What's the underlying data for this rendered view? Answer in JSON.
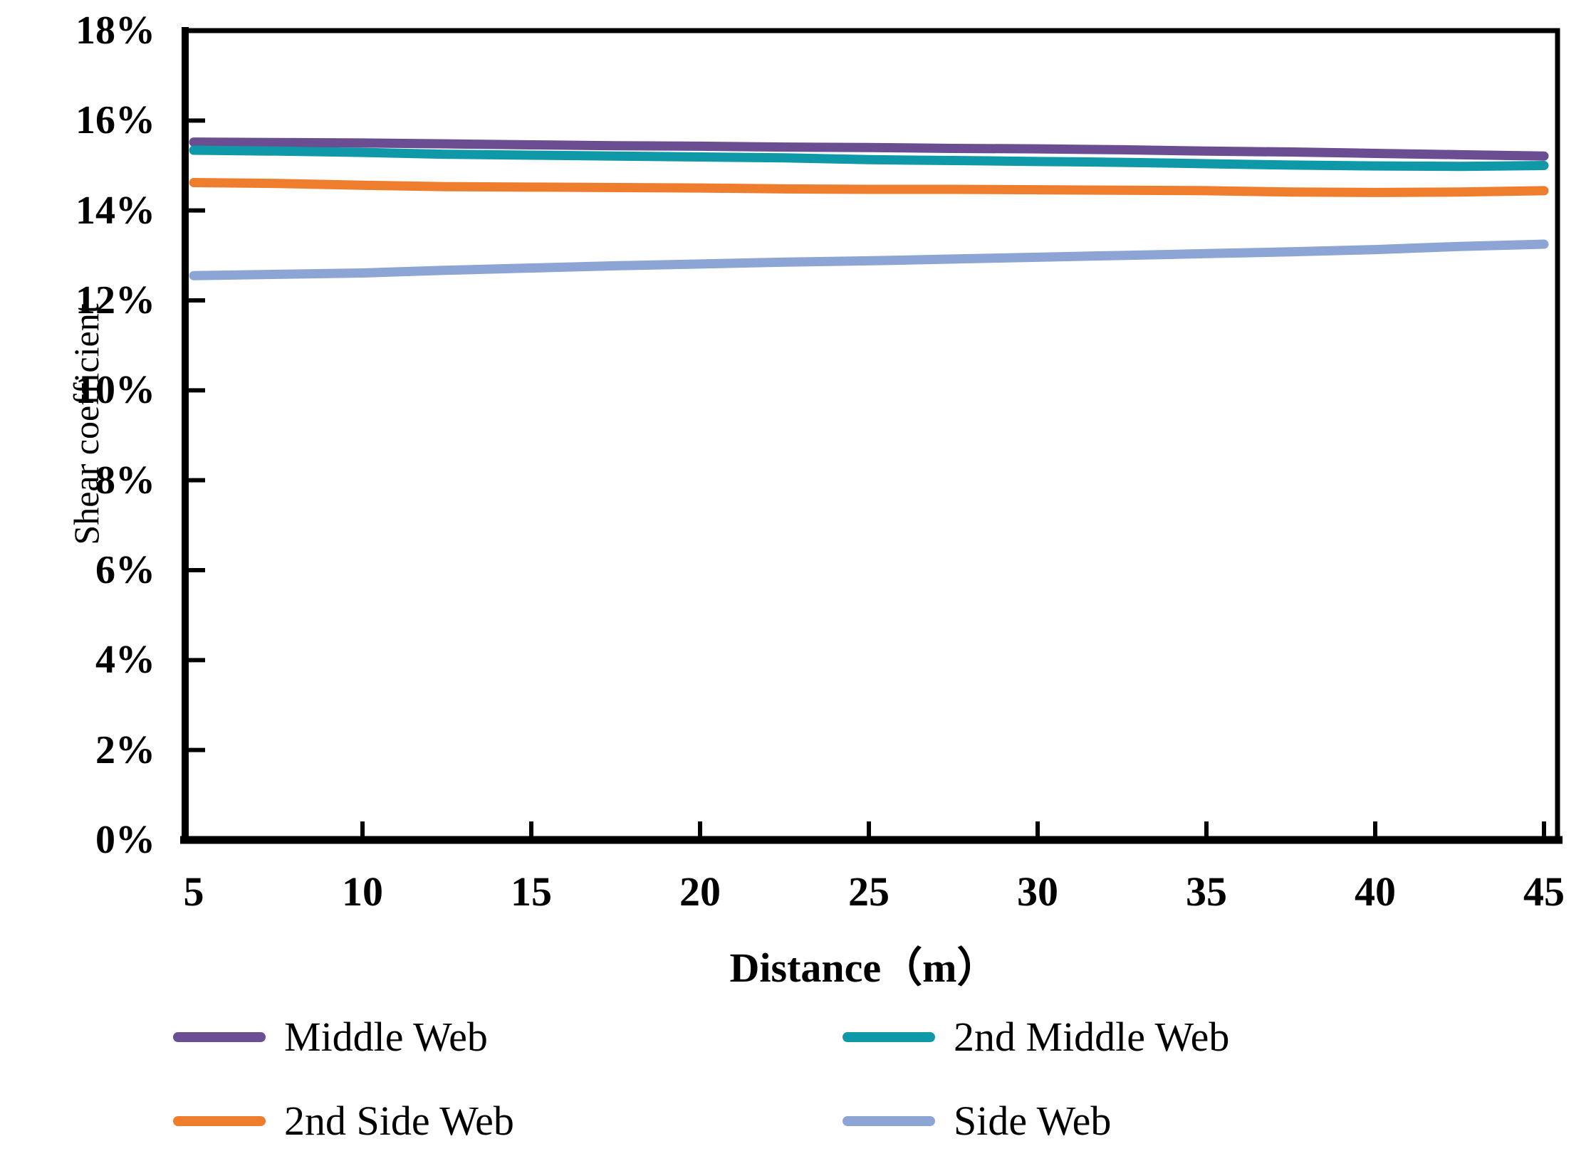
{
  "figure": {
    "background": "#ffffff",
    "axis_color": "#000000"
  },
  "chart_data": {
    "type": "line",
    "title": "",
    "xlabel": "Distance（m）",
    "ylabel": "Shear coefficient",
    "x": [
      5,
      7.5,
      10,
      12.5,
      15,
      17.5,
      20,
      22.5,
      25,
      27.5,
      30,
      32.5,
      35,
      37.5,
      40,
      42.5,
      45
    ],
    "xlim": [
      5,
      45
    ],
    "ylim": [
      0,
      18
    ],
    "grid": false,
    "legend_position": "bottom two-column",
    "x_tick_labels": [
      "5",
      "10",
      "15",
      "20",
      "25",
      "30",
      "35",
      "40",
      "45"
    ],
    "x_tick_values": [
      5,
      10,
      15,
      20,
      25,
      30,
      35,
      40,
      45
    ],
    "x_tick_marks": [
      10,
      15,
      20,
      25,
      30,
      35,
      40,
      45
    ],
    "y_tick_labels": [
      "0%",
      "2%",
      "4%",
      "6%",
      "8%",
      "10%",
      "12%",
      "14%",
      "16%",
      "18%"
    ],
    "y_tick_values": [
      0,
      2,
      4,
      6,
      8,
      10,
      12,
      14,
      16,
      18
    ],
    "y_tick_marks": [
      2,
      4,
      6,
      8,
      10,
      12,
      14,
      16
    ],
    "series": [
      {
        "name": "Middle Web",
        "color": "#6B4D92",
        "values": [
          15.52,
          15.51,
          15.5,
          15.48,
          15.46,
          15.44,
          15.43,
          15.41,
          15.4,
          15.38,
          15.37,
          15.35,
          15.32,
          15.3,
          15.27,
          15.24,
          15.21
        ]
      },
      {
        "name": "2nd Middle Web",
        "color": "#0F98A8",
        "values": [
          15.34,
          15.32,
          15.29,
          15.25,
          15.23,
          15.21,
          15.19,
          15.17,
          15.13,
          15.11,
          15.09,
          15.07,
          15.04,
          15.01,
          14.99,
          14.98,
          15.0
        ]
      },
      {
        "name": "2nd Side Web",
        "color": "#EF7D2E",
        "values": [
          14.62,
          14.6,
          14.56,
          14.53,
          14.52,
          14.51,
          14.5,
          14.48,
          14.47,
          14.47,
          14.46,
          14.45,
          14.44,
          14.41,
          14.4,
          14.41,
          14.44
        ]
      },
      {
        "name": "Side Web",
        "color": "#8CA5D5",
        "values": [
          12.55,
          12.58,
          12.61,
          12.67,
          12.72,
          12.77,
          12.81,
          12.85,
          12.88,
          12.92,
          12.96,
          13.0,
          13.04,
          13.08,
          13.13,
          13.2,
          13.25
        ]
      }
    ]
  }
}
